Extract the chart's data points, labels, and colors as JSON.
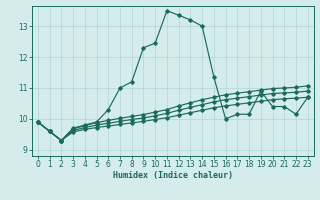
{
  "xlabel": "Humidex (Indice chaleur)",
  "bg_color": "#d4ecec",
  "grid_color": "#b8d8d8",
  "line_color": "#1a6b5a",
  "xlim": [
    -0.5,
    23.5
  ],
  "ylim": [
    8.8,
    13.65
  ],
  "xticks": [
    0,
    1,
    2,
    3,
    4,
    5,
    6,
    7,
    8,
    9,
    10,
    11,
    12,
    13,
    14,
    15,
    16,
    17,
    18,
    19,
    20,
    21,
    22,
    23
  ],
  "yticks": [
    9,
    10,
    11,
    12,
    13
  ],
  "series": [
    {
      "x": [
        0,
        1,
        2,
        3,
        4,
        5,
        6,
        7,
        8,
        9,
        10,
        11,
        12,
        13,
        14,
        15,
        16,
        17,
        18,
        19,
        20,
        21,
        22,
        23
      ],
      "y": [
        9.9,
        9.6,
        9.3,
        9.7,
        9.8,
        9.9,
        10.3,
        11.0,
        11.2,
        12.3,
        12.45,
        13.5,
        13.35,
        13.2,
        13.0,
        11.35,
        10.0,
        10.15,
        10.15,
        10.9,
        10.4,
        10.4,
        10.15,
        10.7
      ]
    },
    {
      "x": [
        0,
        1,
        2,
        3,
        4,
        5,
        6,
        7,
        8,
        9,
        10,
        11,
        12,
        13,
        14,
        15,
        16,
        17,
        18,
        19,
        20,
        21,
        22,
        23
      ],
      "y": [
        9.9,
        9.6,
        9.3,
        9.68,
        9.78,
        9.88,
        9.95,
        10.02,
        10.08,
        10.14,
        10.22,
        10.3,
        10.42,
        10.52,
        10.62,
        10.7,
        10.78,
        10.83,
        10.88,
        10.93,
        10.98,
        11.0,
        11.02,
        11.07
      ]
    },
    {
      "x": [
        0,
        1,
        2,
        3,
        4,
        5,
        6,
        7,
        8,
        9,
        10,
        11,
        12,
        13,
        14,
        15,
        16,
        17,
        18,
        19,
        20,
        21,
        22,
        23
      ],
      "y": [
        9.9,
        9.6,
        9.3,
        9.63,
        9.72,
        9.8,
        9.86,
        9.92,
        9.98,
        10.03,
        10.1,
        10.18,
        10.28,
        10.37,
        10.46,
        10.55,
        10.62,
        10.67,
        10.72,
        10.77,
        10.82,
        10.84,
        10.86,
        10.9
      ]
    },
    {
      "x": [
        0,
        1,
        2,
        3,
        4,
        5,
        6,
        7,
        8,
        9,
        10,
        11,
        12,
        13,
        14,
        15,
        16,
        17,
        18,
        19,
        20,
        21,
        22,
        23
      ],
      "y": [
        9.9,
        9.6,
        9.3,
        9.58,
        9.66,
        9.72,
        9.77,
        9.82,
        9.87,
        9.92,
        9.98,
        10.04,
        10.12,
        10.2,
        10.28,
        10.36,
        10.42,
        10.47,
        10.52,
        10.57,
        10.62,
        10.65,
        10.67,
        10.7
      ]
    }
  ]
}
